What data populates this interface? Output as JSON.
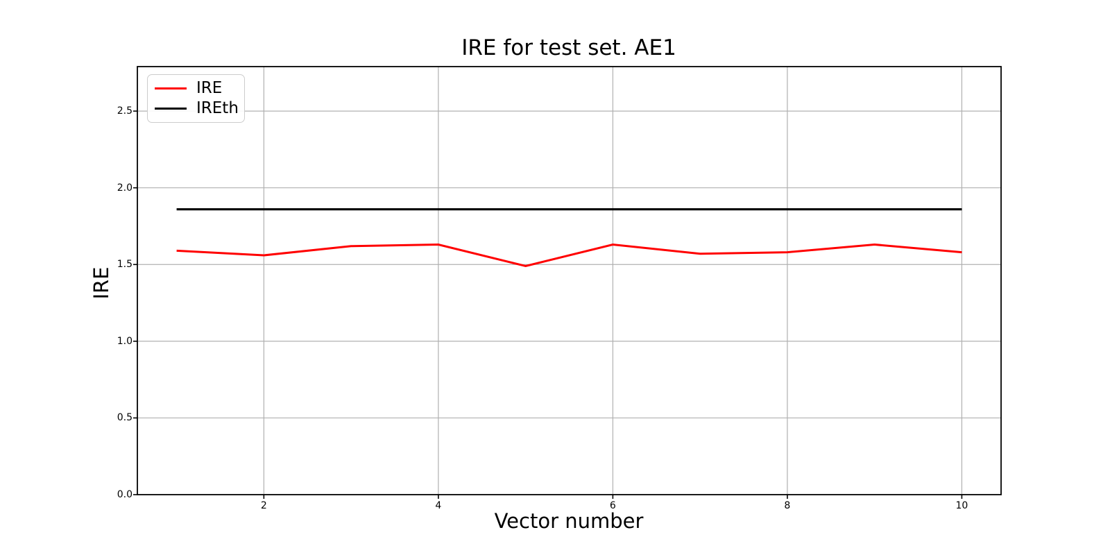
{
  "chart_data": {
    "type": "line",
    "title": "IRE for test set. AE1",
    "xlabel": "Vector number",
    "ylabel": "IRE",
    "x": [
      1,
      2,
      3,
      4,
      5,
      6,
      7,
      8,
      9,
      10
    ],
    "series": [
      {
        "name": "IRE",
        "color": "#ff0000",
        "linewidth": 3,
        "values": [
          1.59,
          1.56,
          1.62,
          1.63,
          1.49,
          1.63,
          1.57,
          1.58,
          1.63,
          1.58
        ]
      },
      {
        "name": "IREth",
        "color": "#000000",
        "linewidth": 3.2,
        "values": [
          1.86,
          1.86,
          1.86,
          1.86,
          1.86,
          1.86,
          1.86,
          1.86,
          1.86,
          1.86
        ]
      }
    ],
    "xlim": [
      0.55,
      10.45
    ],
    "ylim": [
      0,
      2.79
    ],
    "xticks": {
      "values": [
        2,
        4,
        6,
        8,
        10
      ],
      "labels": [
        "2",
        "4",
        "6",
        "8",
        "10"
      ]
    },
    "yticks": {
      "values": [
        0.0,
        0.5,
        1.0,
        1.5,
        2.0,
        2.5
      ],
      "labels": [
        "0.0",
        "0.5",
        "1.0",
        "1.5",
        "2.0",
        "2.5"
      ]
    },
    "grid": true,
    "grid_color": "#b0b0b0",
    "spine_color": "#000000",
    "background_color": "#ffffff",
    "legend": {
      "position": "upper left",
      "entries": [
        {
          "label": "IRE",
          "color": "#ff0000"
        },
        {
          "label": "IREth",
          "color": "#000000"
        }
      ]
    }
  }
}
